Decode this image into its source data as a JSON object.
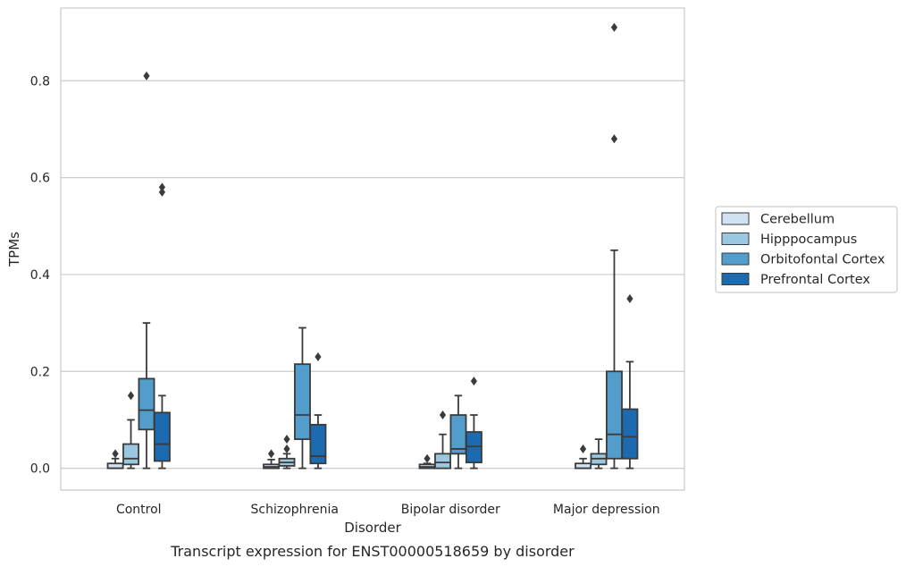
{
  "chart_data": {
    "type": "box",
    "caption": "Transcript expression for ENST00000518659 by disorder",
    "xlabel": "Disorder",
    "ylabel": "TPMs",
    "ylim": [
      -0.045,
      0.95
    ],
    "yticks": [
      "0.0",
      "0.2",
      "0.4",
      "0.6",
      "0.8"
    ],
    "ytick_values": [
      0.0,
      0.2,
      0.4,
      0.6,
      0.8
    ],
    "grid": "horizontal",
    "legend_position": "right",
    "categories": [
      "Control",
      "Schizophrenia",
      "Bipolar disorder",
      "Major depression"
    ],
    "series": [
      {
        "name": "Cerebellum",
        "color": "#d1e2f2",
        "boxes": [
          {
            "min": 0.0,
            "q1": 0.0,
            "median": 0.0,
            "q3": 0.01,
            "max": 0.02,
            "outliers": [
              0.03
            ]
          },
          {
            "min": 0.0,
            "q1": 0.0,
            "median": 0.003,
            "q3": 0.008,
            "max": 0.018,
            "outliers": [
              0.03
            ]
          },
          {
            "min": 0.0,
            "q1": 0.0,
            "median": 0.003,
            "q3": 0.008,
            "max": 0.01,
            "outliers": [
              0.02
            ]
          },
          {
            "min": 0.0,
            "q1": 0.0,
            "median": 0.0,
            "q3": 0.01,
            "max": 0.02,
            "outliers": [
              0.04
            ]
          }
        ]
      },
      {
        "name": "Hipppocampus",
        "color": "#9ac8e0",
        "boxes": [
          {
            "min": 0.0,
            "q1": 0.008,
            "median": 0.02,
            "q3": 0.05,
            "max": 0.1,
            "outliers": [
              0.15
            ]
          },
          {
            "min": 0.0,
            "q1": 0.005,
            "median": 0.012,
            "q3": 0.02,
            "max": 0.03,
            "outliers": [
              0.04,
              0.06
            ]
          },
          {
            "min": 0.0,
            "q1": 0.0,
            "median": 0.012,
            "q3": 0.03,
            "max": 0.07,
            "outliers": [
              0.11
            ]
          },
          {
            "min": 0.0,
            "q1": 0.008,
            "median": 0.02,
            "q3": 0.03,
            "max": 0.06,
            "outliers": []
          }
        ]
      },
      {
        "name": "Orbitofontal Cortex",
        "color": "#529dcc",
        "boxes": [
          {
            "min": 0.0,
            "q1": 0.08,
            "median": 0.12,
            "q3": 0.185,
            "max": 0.3,
            "outliers": [
              0.81
            ]
          },
          {
            "min": 0.0,
            "q1": 0.06,
            "median": 0.11,
            "q3": 0.215,
            "max": 0.29,
            "outliers": []
          },
          {
            "min": 0.0,
            "q1": 0.03,
            "median": 0.04,
            "q3": 0.11,
            "max": 0.15,
            "outliers": []
          },
          {
            "min": 0.0,
            "q1": 0.02,
            "median": 0.07,
            "q3": 0.2,
            "max": 0.45,
            "outliers": [
              0.68,
              0.91
            ]
          }
        ]
      },
      {
        "name": "Prefrontal Cortex",
        "color": "#1c6aaf",
        "boxes": [
          {
            "min": 0.0,
            "q1": 0.015,
            "median": 0.05,
            "q3": 0.115,
            "max": 0.15,
            "outliers": [
              0.57,
              0.58
            ]
          },
          {
            "min": 0.0,
            "q1": 0.01,
            "median": 0.025,
            "q3": 0.09,
            "max": 0.11,
            "outliers": [
              0.23
            ]
          },
          {
            "min": 0.0,
            "q1": 0.012,
            "median": 0.045,
            "q3": 0.075,
            "max": 0.11,
            "outliers": [
              0.18
            ]
          },
          {
            "min": 0.0,
            "q1": 0.02,
            "median": 0.065,
            "q3": 0.122,
            "max": 0.22,
            "outliers": [
              0.35
            ]
          }
        ]
      }
    ]
  }
}
